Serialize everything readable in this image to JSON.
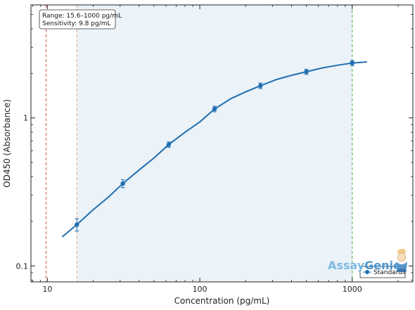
{
  "chart_data": {
    "type": "line",
    "xlabel": "Concentration (pg/mL)",
    "ylabel": "OD450 (Absorbance)",
    "xscale": "log",
    "yscale": "log",
    "xlim": [
      7.8,
      2500
    ],
    "ylim": [
      0.078,
      5.8
    ],
    "x_ticks": [
      10,
      100,
      1000
    ],
    "x_tick_labels": [
      "10",
      "100",
      "1000"
    ],
    "y_ticks": [
      0.1,
      1
    ],
    "y_tick_labels": [
      "0.1",
      "1"
    ],
    "grid": false,
    "series": [
      {
        "name": "Standards",
        "kind": "scatter-errorbar",
        "color": "#1f6fb0",
        "x": [
          15.6,
          31.25,
          62.5,
          125,
          250,
          500,
          1000
        ],
        "y": [
          0.19,
          0.36,
          0.66,
          1.15,
          1.65,
          2.05,
          2.35
        ],
        "y_err": [
          0.018,
          0.022,
          0.028,
          0.05,
          0.07,
          0.08,
          0.09
        ]
      },
      {
        "kind": "fit-curve",
        "color": "#1f6fb0",
        "x": [
          12.5,
          15.6,
          20,
          25,
          31.25,
          40,
          50,
          62.5,
          80,
          100,
          125,
          160,
          200,
          250,
          320,
          400,
          500,
          640,
          800,
          1000,
          1250
        ],
        "y": [
          0.157,
          0.19,
          0.24,
          0.29,
          0.36,
          0.445,
          0.535,
          0.66,
          0.8,
          0.94,
          1.15,
          1.35,
          1.5,
          1.65,
          1.82,
          1.94,
          2.05,
          2.18,
          2.27,
          2.35,
          2.39
        ]
      }
    ],
    "reference_lines": [
      {
        "x": 9.8,
        "color": "#d9534f",
        "style": "dashed"
      },
      {
        "x": 15.6,
        "color": "#e8a27a",
        "style": "dashed"
      },
      {
        "x": 1000,
        "color": "#3cb043",
        "style": "dashed"
      }
    ],
    "shaded_range": {
      "x_from": 15.6,
      "x_to": 1000,
      "color": "#e4edf6"
    },
    "annotation_lines": [
      "Range: 15.6–1000 pg/mL",
      "Sensitivity: 9.8 pg/mL"
    ],
    "legend": {
      "placement": "bottom-right",
      "entries": [
        "Standards"
      ]
    }
  },
  "logo": {
    "part1": "Assay",
    "part2": "Genie"
  }
}
